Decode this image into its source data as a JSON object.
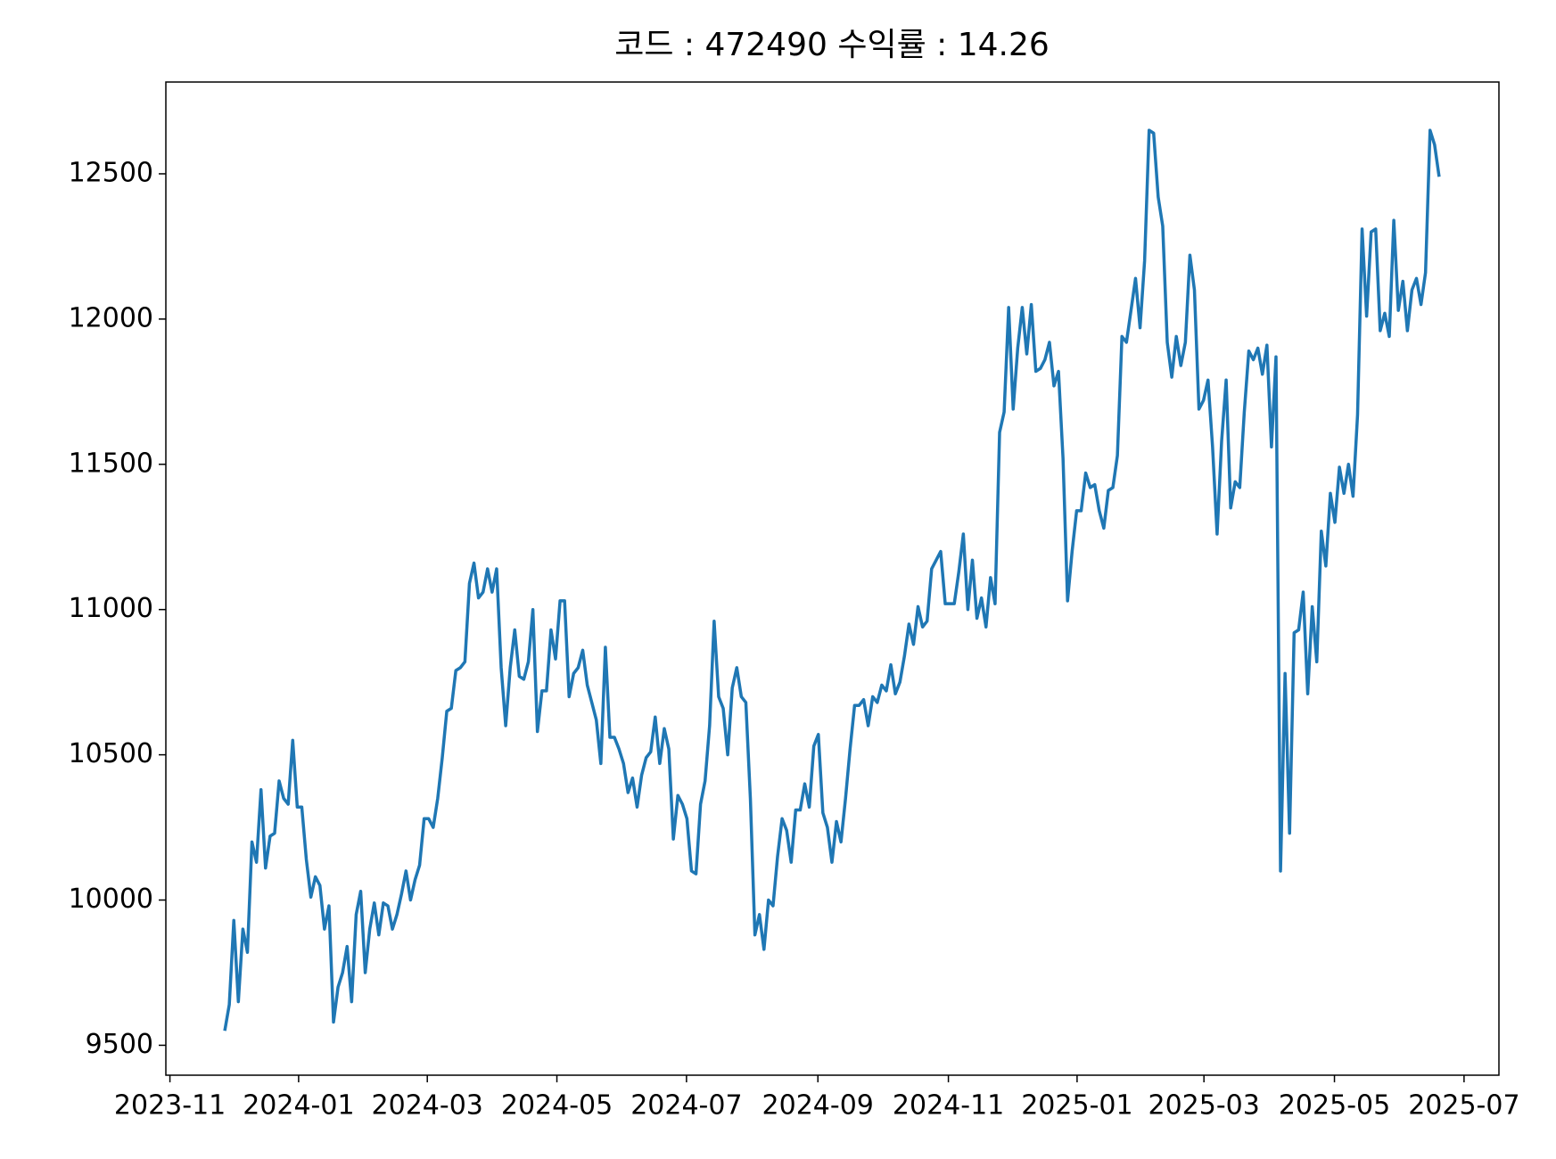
{
  "chart_data": {
    "type": "line",
    "title": "코드 : 472490 수익률 : 14.26",
    "color": "#1f77b4",
    "values": [
      9550,
      9640,
      9930,
      9650,
      9900,
      9820,
      10200,
      10130,
      10380,
      10110,
      10220,
      10230,
      10410,
      10350,
      10330,
      10550,
      10320,
      10320,
      10140,
      10010,
      10080,
      10050,
      9900,
      9980,
      9580,
      9700,
      9750,
      9840,
      9650,
      9950,
      10030,
      9750,
      9900,
      9990,
      9880,
      9990,
      9980,
      9900,
      9950,
      10020,
      10100,
      10000,
      10070,
      10120,
      10280,
      10280,
      10250,
      10350,
      10490,
      10650,
      10660,
      10790,
      10800,
      10820,
      11090,
      11160,
      11040,
      11060,
      11140,
      11060,
      11140,
      10800,
      10600,
      10800,
      10930,
      10770,
      10760,
      10820,
      11000,
      10580,
      10720,
      10720,
      10930,
      10830,
      11030,
      11030,
      10700,
      10780,
      10800,
      10860,
      10740,
      10680,
      10620,
      10470,
      10870,
      10560,
      10560,
      10520,
      10470,
      10370,
      10420,
      10320,
      10430,
      10490,
      10510,
      10630,
      10470,
      10590,
      10520,
      10210,
      10360,
      10330,
      10280,
      10100,
      10090,
      10330,
      10410,
      10600,
      10960,
      10700,
      10660,
      10500,
      10730,
      10800,
      10700,
      10680,
      10350,
      9880,
      9950,
      9830,
      10000,
      9980,
      10150,
      10280,
      10240,
      10130,
      10310,
      10310,
      10400,
      10320,
      10530,
      10570,
      10300,
      10250,
      10130,
      10270,
      10200,
      10350,
      10520,
      10670,
      10670,
      10690,
      10600,
      10700,
      10680,
      10740,
      10720,
      10810,
      10710,
      10750,
      10840,
      10950,
      10880,
      11010,
      10940,
      10960,
      11140,
      11170,
      11200,
      11020,
      11020,
      11020,
      11130,
      11260,
      11000,
      11170,
      10970,
      11040,
      10940,
      11110,
      11020,
      11610,
      11680,
      12040,
      11690,
      11900,
      12040,
      11880,
      12050,
      11820,
      11830,
      11860,
      11920,
      11770,
      11820,
      11520,
      11030,
      11200,
      11340,
      11340,
      11470,
      11420,
      11430,
      11340,
      11280,
      11410,
      11420,
      11530,
      11940,
      11920,
      12030,
      12140,
      11970,
      12200,
      12650,
      12640,
      12420,
      12320,
      11920,
      11800,
      11940,
      11840,
      11920,
      12220,
      12100,
      11690,
      11720,
      11790,
      11560,
      11260,
      11580,
      11790,
      11350,
      11440,
      11420,
      11680,
      11890,
      11860,
      11900,
      11810,
      11910,
      11560,
      11870,
      10100,
      10780,
      10230,
      10920,
      10930,
      11060,
      10710,
      11010,
      10820,
      11270,
      11150,
      11400,
      11300,
      11490,
      11400,
      11500,
      11390,
      11670,
      12310,
      12010,
      12300,
      12310,
      11960,
      12020,
      11940,
      12340,
      12030,
      12130,
      11960,
      12100,
      12140,
      12050,
      12160,
      12650,
      12600,
      12490
    ],
    "xlim": [
      -13.0,
      281.2
    ],
    "xticks": [
      {
        "value": -12.1,
        "label": "2023-11"
      },
      {
        "value": 16.3,
        "label": "2024-01"
      },
      {
        "value": 44.7,
        "label": "2024-03"
      },
      {
        "value": 73.3,
        "label": "2024-05"
      },
      {
        "value": 101.9,
        "label": "2024-07"
      },
      {
        "value": 130.9,
        "label": "2024-09"
      },
      {
        "value": 159.7,
        "label": "2024-11"
      },
      {
        "value": 188.1,
        "label": "2025-01"
      },
      {
        "value": 216.1,
        "label": "2025-03"
      },
      {
        "value": 244.9,
        "label": "2025-05"
      },
      {
        "value": 273.5,
        "label": "2025-07"
      }
    ],
    "ylim": [
      9397,
      12816
    ],
    "yticks": [
      9500,
      10000,
      10500,
      11000,
      11500,
      12000,
      12500
    ],
    "grid": false
  }
}
